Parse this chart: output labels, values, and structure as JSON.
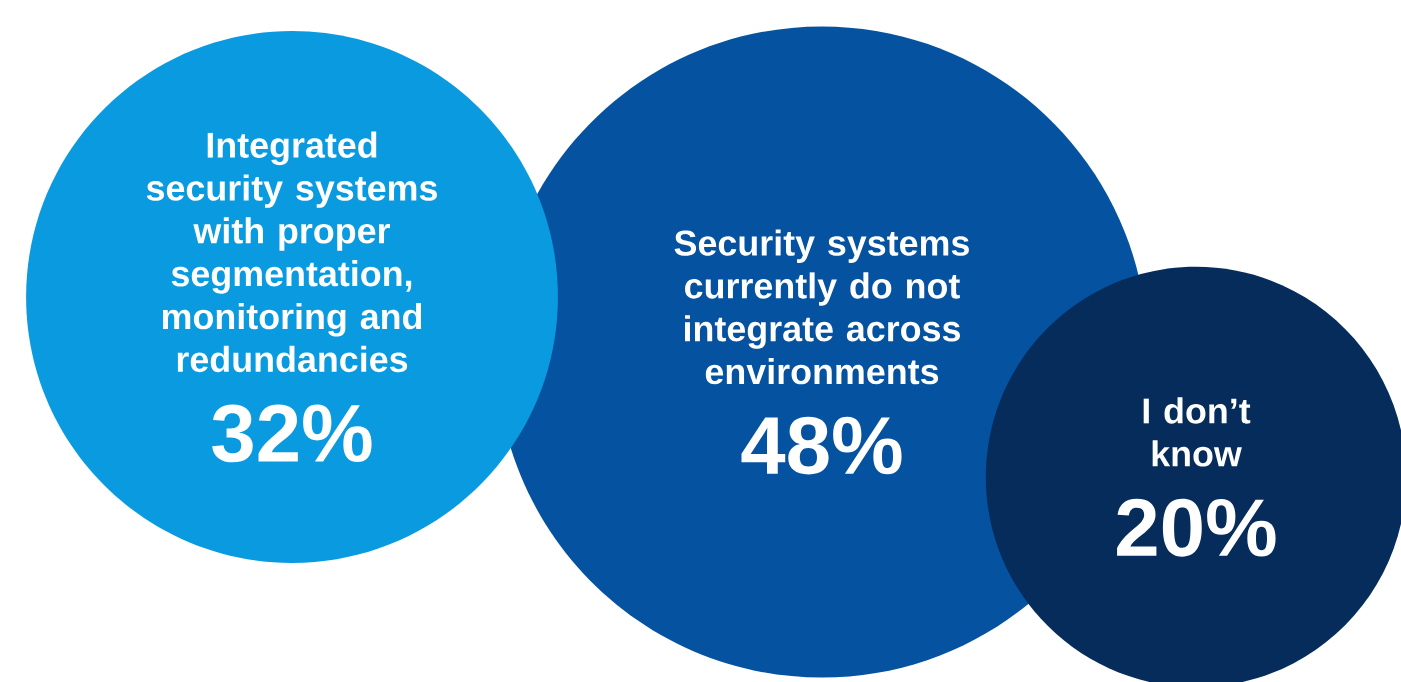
{
  "chart_data": {
    "type": "other",
    "categories": [
      "Integrated security systems with proper segmentation, monitoring and redundancies",
      "Security systems currently do not integrate across environments",
      "I don’t know"
    ],
    "values": [
      32,
      48,
      20
    ],
    "value_labels": [
      "32%",
      "48%",
      "20%"
    ],
    "colors": [
      "#0a9ae0",
      "#0552a0",
      "#062c5c"
    ]
  }
}
